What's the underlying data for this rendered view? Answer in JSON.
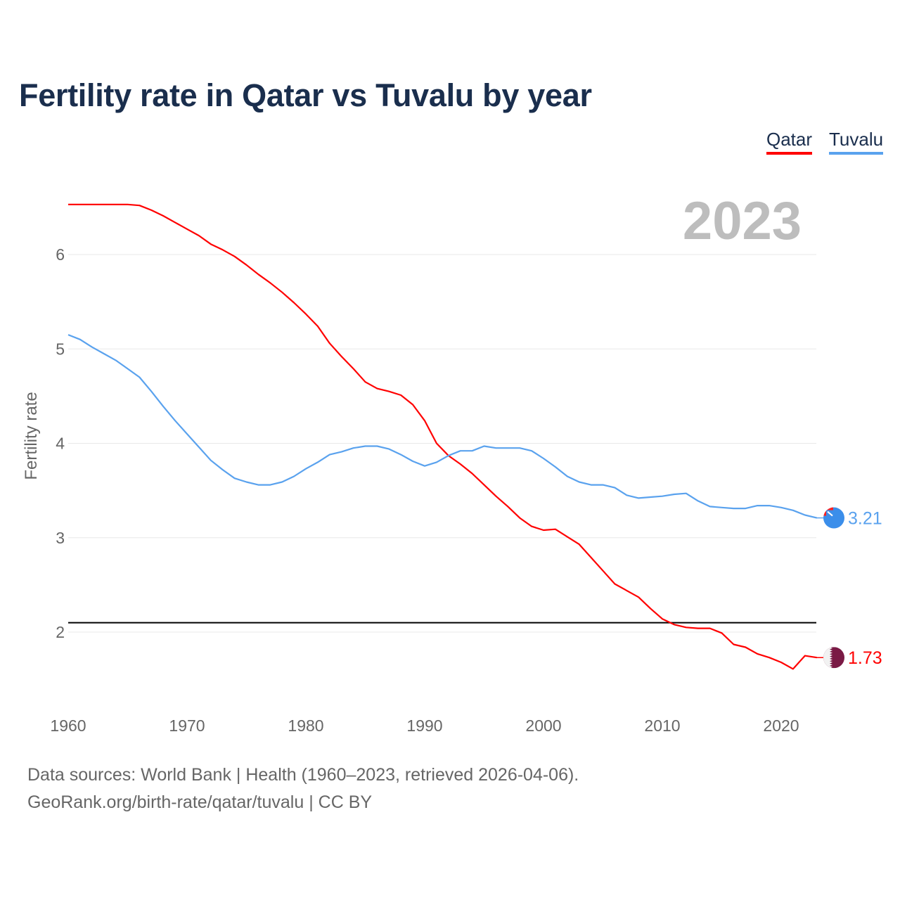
{
  "title": "Fertility rate in Qatar vs Tuvalu by year",
  "legend": [
    {
      "label": "Qatar",
      "color": "#ff0000"
    },
    {
      "label": "Tuvalu",
      "color": "#5aa2ee"
    }
  ],
  "footer": {
    "line1": "Data sources: World Bank | Health (1960–2023, retrieved 2026-04-06).",
    "line2": "GeoRank.org/birth-rate/qatar/tuvalu | CC BY"
  },
  "chart_data": {
    "type": "line",
    "title": "Fertility rate in Qatar vs Tuvalu by year",
    "xlabel": "",
    "ylabel": "Fertility rate",
    "year_label": "2023",
    "xlim": [
      1960,
      2023
    ],
    "ylim": [
      1.4,
      6.8
    ],
    "xticks": [
      1960,
      1970,
      1980,
      1990,
      2000,
      2010,
      2020
    ],
    "yticks": [
      2,
      3,
      4,
      5,
      6
    ],
    "grid": true,
    "reference_line": 2.1,
    "legend_position": "top-right",
    "x_start": 1960,
    "series": [
      {
        "name": "Qatar",
        "color": "#ff0000",
        "end_label": "1.73",
        "values": [
          6.53,
          6.53,
          6.53,
          6.53,
          6.53,
          6.53,
          6.52,
          6.47,
          6.41,
          6.34,
          6.27,
          6.2,
          6.11,
          6.05,
          5.98,
          5.89,
          5.79,
          5.7,
          5.6,
          5.49,
          5.37,
          5.24,
          5.06,
          4.92,
          4.79,
          4.65,
          4.58,
          4.55,
          4.51,
          4.41,
          4.24,
          4.0,
          3.87,
          3.78,
          3.68,
          3.56,
          3.44,
          3.33,
          3.21,
          3.12,
          3.08,
          3.09,
          3.01,
          2.93,
          2.79,
          2.65,
          2.51,
          2.44,
          2.37,
          2.25,
          2.14,
          2.08,
          2.05,
          2.04,
          2.04,
          1.99,
          1.87,
          1.84,
          1.77,
          1.73,
          1.68,
          1.61,
          1.75,
          1.73
        ]
      },
      {
        "name": "Tuvalu",
        "color": "#5aa2ee",
        "end_label": "3.21",
        "values": [
          5.15,
          5.1,
          5.02,
          4.95,
          4.88,
          4.79,
          4.7,
          4.55,
          4.39,
          4.24,
          4.1,
          3.96,
          3.82,
          3.72,
          3.63,
          3.59,
          3.56,
          3.56,
          3.59,
          3.65,
          3.73,
          3.8,
          3.88,
          3.91,
          3.95,
          3.97,
          3.97,
          3.94,
          3.88,
          3.81,
          3.76,
          3.8,
          3.87,
          3.92,
          3.92,
          3.97,
          3.95,
          3.95,
          3.95,
          3.92,
          3.84,
          3.75,
          3.65,
          3.59,
          3.56,
          3.56,
          3.53,
          3.45,
          3.42,
          3.43,
          3.44,
          3.46,
          3.47,
          3.39,
          3.33,
          3.32,
          3.31,
          3.31,
          3.34,
          3.34,
          3.32,
          3.29,
          3.24,
          3.21
        ]
      }
    ]
  }
}
